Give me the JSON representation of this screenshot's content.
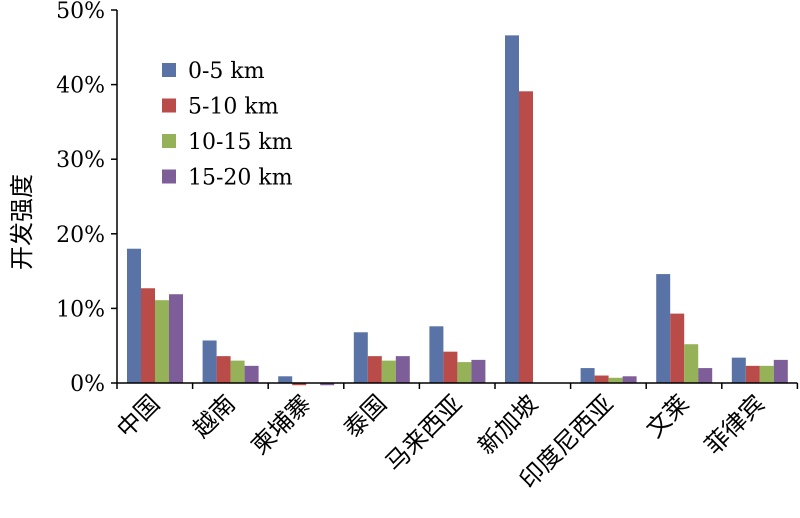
{
  "chart_data": {
    "type": "bar",
    "title": "",
    "xlabel": "",
    "ylabel": "开发强度",
    "ylim": [
      0,
      50
    ],
    "yticks": [
      "0%",
      "10%",
      "20%",
      "30%",
      "40%",
      "50%"
    ],
    "ytick_values": [
      0,
      10,
      20,
      30,
      40,
      50
    ],
    "grid": false,
    "legend_position": "top-left",
    "categories": [
      "中国",
      "越南",
      "柬埔寨",
      "泰国",
      "马来西亚",
      "新加坡",
      "印度尼西亚",
      "文莱",
      "菲律宾"
    ],
    "series": [
      {
        "name": "0-5 km",
        "color": "#5A73A6",
        "values": [
          18.0,
          5.7,
          0.9,
          6.8,
          7.6,
          46.6,
          2.0,
          14.6,
          3.4
        ]
      },
      {
        "name": "5-10 km",
        "color": "#B94B49",
        "values": [
          12.7,
          3.6,
          -0.3,
          3.6,
          4.2,
          39.1,
          1.0,
          9.3,
          2.3
        ]
      },
      {
        "name": "10-15 km",
        "color": "#96B258",
        "values": [
          11.1,
          3.0,
          0.0,
          3.0,
          2.8,
          0.0,
          0.7,
          5.2,
          2.3
        ]
      },
      {
        "name": "15-20 km",
        "color": "#7D5E99",
        "values": [
          11.9,
          2.3,
          -0.3,
          3.6,
          3.1,
          0.0,
          0.9,
          2.0,
          3.1
        ]
      }
    ]
  }
}
